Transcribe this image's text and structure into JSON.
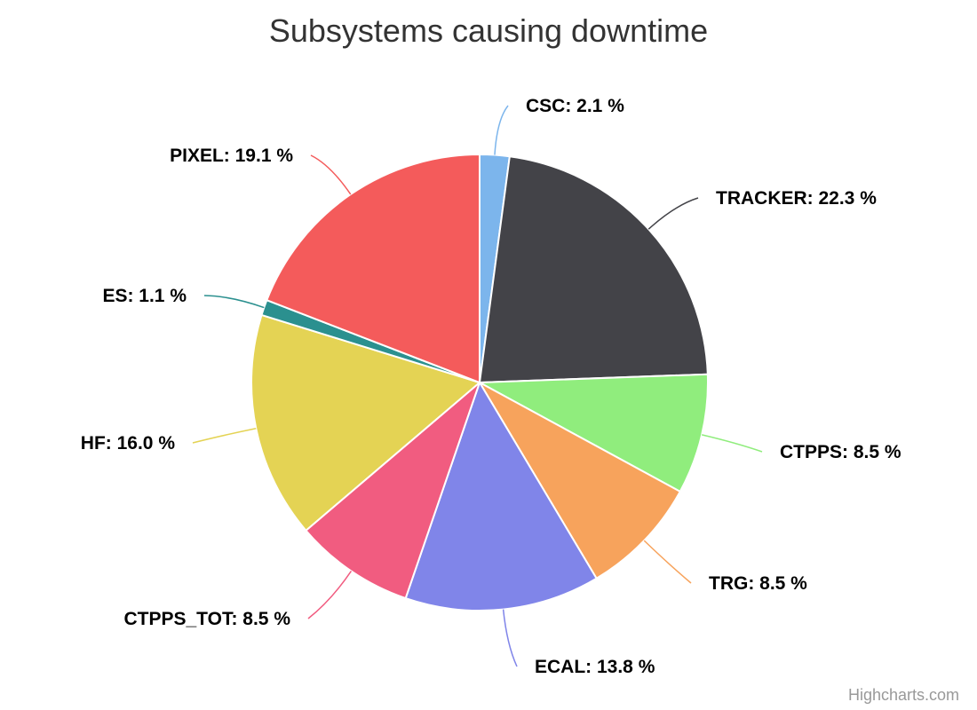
{
  "chart_data": {
    "type": "pie",
    "title": "Subsystems causing downtime",
    "label_format": "{name}: {value} %",
    "slices": [
      {
        "name": "CSC",
        "value": 2.1,
        "label": "CSC: 2.1 %",
        "color": "#7cb5ec"
      },
      {
        "name": "TRACKER",
        "value": 22.3,
        "label": "TRACKER: 22.3 %",
        "color": "#434348"
      },
      {
        "name": "CTPPS",
        "value": 8.5,
        "label": "CTPPS: 8.5 %",
        "color": "#90ed7d"
      },
      {
        "name": "TRG",
        "value": 8.5,
        "label": "TRG: 8.5 %",
        "color": "#f7a35c"
      },
      {
        "name": "ECAL",
        "value": 13.8,
        "label": "ECAL: 13.8 %",
        "color": "#8085e9"
      },
      {
        "name": "CTPPS_TOT",
        "value": 8.5,
        "label": "CTPPS_TOT: 8.5 %",
        "color": "#f15c80"
      },
      {
        "name": "HF",
        "value": 16.0,
        "label": "HF: 16.0 %",
        "color": "#e4d354"
      },
      {
        "name": "ES",
        "value": 1.1,
        "label": "ES: 1.1 %",
        "color": "#2b908f"
      },
      {
        "name": "PIXEL",
        "value": 19.1,
        "label": "PIXEL: 19.1 %",
        "color": "#f45b5b"
      }
    ]
  },
  "credits": "Highcharts.com"
}
